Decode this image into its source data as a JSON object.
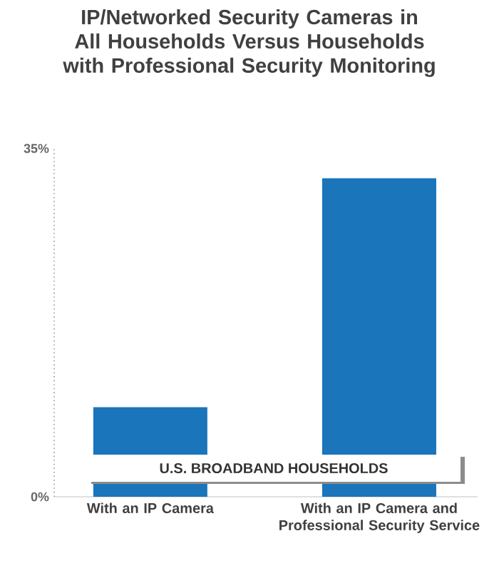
{
  "chart_data": {
    "type": "bar",
    "title": "IP/Networked Security Cameras in All Households Versus Households with Professional Security Monitoring",
    "categories": [
      "With an IP Camera",
      "With an IP Camera and Professional Security Service"
    ],
    "values": [
      9,
      32
    ],
    "color": "#1a75bb",
    "ylim": [
      0,
      35
    ],
    "yticks": [
      {
        "value": 0,
        "label": "0%"
      },
      {
        "value": 35,
        "label": "35%"
      }
    ],
    "grid": false,
    "annotations": [
      "U.S. BROADBAND HOUSEHOLDS"
    ]
  }
}
